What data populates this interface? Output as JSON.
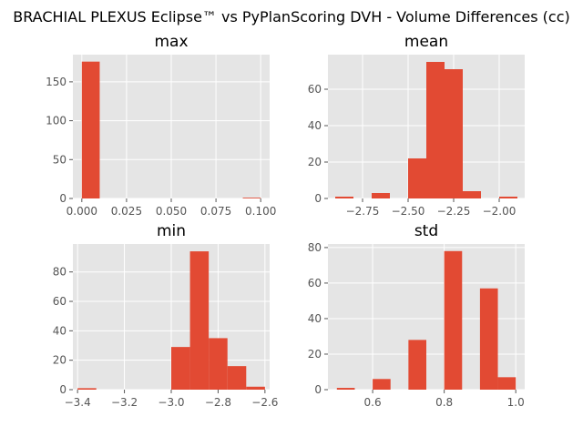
{
  "chart_data": {
    "title": "BRACHIAL PLEXUS Eclipse™ vs PyPlanScoring DVH - Volume Differences (cc)",
    "type": "histogram-grid",
    "colors": {
      "bar": "#E24A33",
      "background": "#E5E5E5",
      "grid": "#FFFFFF",
      "tick": "#555555"
    },
    "grid": true,
    "panels": [
      {
        "title": "max",
        "type": "bar",
        "xlim": [
          -0.005,
          0.105
        ],
        "ylim": [
          0,
          185
        ],
        "xticks": [
          0.0,
          0.025,
          0.05,
          0.075,
          0.1
        ],
        "xtick_labels": [
          "0.000",
          "0.025",
          "0.050",
          "0.075",
          "0.100"
        ],
        "yticks": [
          0,
          50,
          100,
          150
        ],
        "ytick_labels": [
          "0",
          "50",
          "100",
          "150"
        ],
        "bins": [
          0.0,
          0.01,
          0.02,
          0.03,
          0.04,
          0.05,
          0.06,
          0.07,
          0.08,
          0.09,
          0.1
        ],
        "values": [
          176,
          0,
          0,
          0,
          0,
          0,
          0,
          0,
          0,
          1
        ]
      },
      {
        "title": "mean",
        "type": "bar",
        "xlim": [
          -2.94,
          -1.86
        ],
        "ylim": [
          0,
          79
        ],
        "xticks": [
          -2.75,
          -2.5,
          -2.25,
          -2.0
        ],
        "xtick_labels": [
          "−2.75",
          "−2.50",
          "−2.25",
          "−2.00"
        ],
        "yticks": [
          0,
          20,
          40,
          60
        ],
        "ytick_labels": [
          "0",
          "20",
          "40",
          "60"
        ],
        "bins": [
          -2.9,
          -2.8,
          -2.7,
          -2.6,
          -2.5,
          -2.4,
          -2.3,
          -2.2,
          -2.1,
          -2.0,
          -1.9
        ],
        "values": [
          1,
          0,
          3,
          0,
          22,
          75,
          71,
          4,
          0,
          1
        ]
      },
      {
        "title": "min",
        "type": "bar",
        "xlim": [
          -3.42,
          -2.58
        ],
        "ylim": [
          0,
          99
        ],
        "xticks": [
          -3.4,
          -3.2,
          -3.0,
          -2.8,
          -2.6
        ],
        "xtick_labels": [
          "−3.4",
          "−3.2",
          "−3.0",
          "−2.8",
          "−2.6"
        ],
        "yticks": [
          0,
          20,
          40,
          60,
          80
        ],
        "ytick_labels": [
          "0",
          "20",
          "40",
          "60",
          "80"
        ],
        "bins": [
          -3.4,
          -3.32,
          -3.24,
          -3.16,
          -3.08,
          -3.0,
          -2.92,
          -2.84,
          -2.76,
          -2.68,
          -2.6
        ],
        "values": [
          1,
          0,
          0,
          0,
          0,
          29,
          94,
          35,
          16,
          2
        ]
      },
      {
        "title": "std",
        "type": "bar",
        "xlim": [
          0.475,
          1.025
        ],
        "ylim": [
          0,
          82
        ],
        "xticks": [
          0.6,
          0.8,
          1.0
        ],
        "xtick_labels": [
          "0.6",
          "0.8",
          "1.0"
        ],
        "yticks": [
          0,
          20,
          40,
          60,
          80
        ],
        "ytick_labels": [
          "0",
          "20",
          "40",
          "60",
          "80"
        ],
        "bins": [
          0.5,
          0.55,
          0.6,
          0.65,
          0.7,
          0.75,
          0.8,
          0.85,
          0.9,
          0.95,
          1.0
        ],
        "values": [
          1,
          0,
          6,
          0,
          28,
          0,
          78,
          0,
          57,
          7
        ]
      }
    ]
  }
}
